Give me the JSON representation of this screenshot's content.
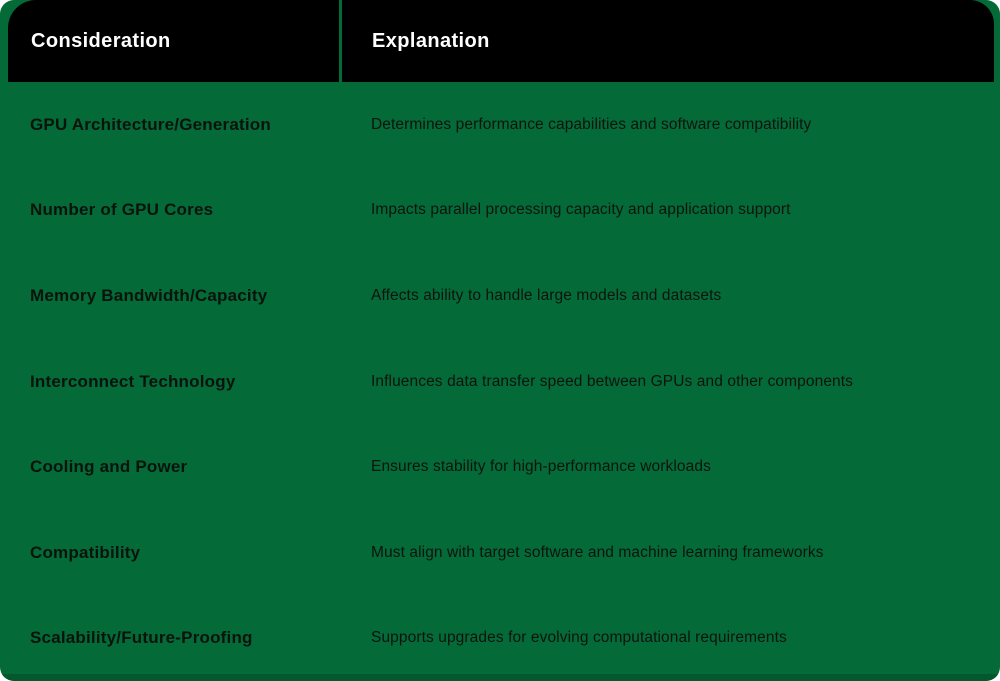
{
  "table": {
    "headers": [
      "Consideration",
      "Explanation"
    ],
    "rows": [
      {
        "consideration": "GPU Architecture/Generation",
        "explanation": "Determines performance capabilities and software compatibility"
      },
      {
        "consideration": "Number of GPU Cores",
        "explanation": "Impacts parallel processing capacity and application support"
      },
      {
        "consideration": "Memory Bandwidth/Capacity",
        "explanation": "Affects ability to handle large models and datasets"
      },
      {
        "consideration": "Interconnect Technology",
        "explanation": "Influences data transfer speed between GPUs and other components"
      },
      {
        "consideration": "Cooling and Power",
        "explanation": "Ensures stability for high-performance workloads"
      },
      {
        "consideration": "Compatibility",
        "explanation": "Must align with target software and machine learning frameworks"
      },
      {
        "consideration": "Scalability/Future-Proofing",
        "explanation": "Supports upgrades for evolving computational requirements"
      }
    ]
  },
  "colors": {
    "background_green": "#046a38",
    "header_background": "#000000",
    "header_text": "#ffffff",
    "body_text": "#0d140f",
    "bottom_strip": "#03592d"
  },
  "chart_data": {
    "type": "table",
    "title": "",
    "columns": [
      "Consideration",
      "Explanation"
    ],
    "rows": [
      [
        "GPU Architecture/Generation",
        "Determines performance capabilities and software compatibility"
      ],
      [
        "Number of GPU Cores",
        "Impacts parallel processing capacity and application support"
      ],
      [
        "Memory Bandwidth/Capacity",
        "Affects ability to handle large models and datasets"
      ],
      [
        "Interconnect Technology",
        "Influences data transfer speed between GPUs and other components"
      ],
      [
        "Cooling and Power",
        "Ensures stability for high-performance workloads"
      ],
      [
        "Compatibility",
        "Must align with target software and machine learning frameworks"
      ],
      [
        "Scalability/Future-Proofing",
        "Supports upgrades for evolving computational requirements"
      ]
    ]
  }
}
